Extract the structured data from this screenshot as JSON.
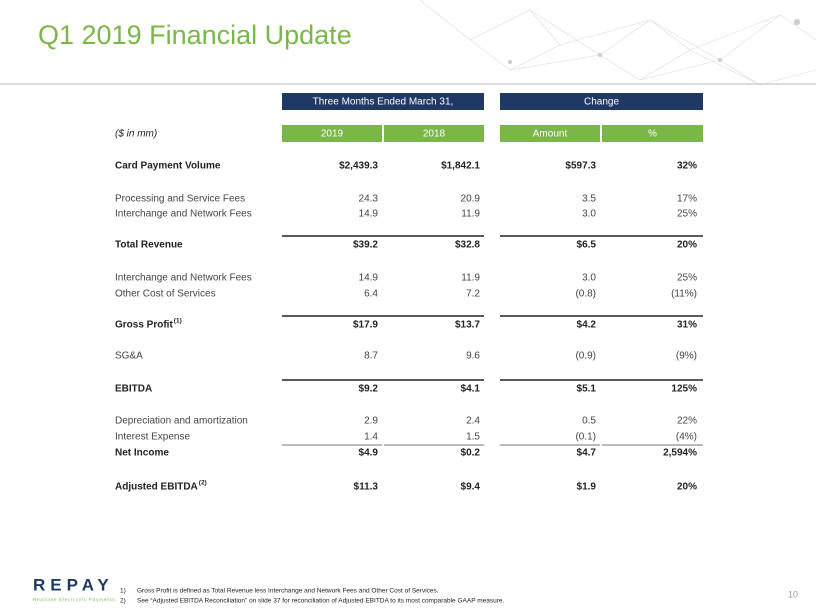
{
  "header": {
    "title": "Q1 2019 Financial Update"
  },
  "table": {
    "unit_note": "($ in mm)",
    "groups": [
      "Three Months Ended March 31,",
      "Change"
    ],
    "columns": [
      "2019",
      "2018",
      "Amount",
      "%"
    ],
    "rows": [
      {
        "label": "Card Payment Volume",
        "cells": [
          "$2,439.3",
          "$1,842.1",
          "$597.3",
          "32%"
        ],
        "bold": true
      },
      {
        "label": "Processing and Service Fees",
        "cells": [
          "24.3",
          "20.9",
          "3.5",
          "17%"
        ]
      },
      {
        "label": "Interchange and Network Fees",
        "cells": [
          "14.9",
          "11.9",
          "3.0",
          "25%"
        ]
      },
      {
        "label": "Total Revenue",
        "cells": [
          "$39.2",
          "$32.8",
          "$6.5",
          "20%"
        ],
        "bold": true,
        "rule_above": true
      },
      {
        "label": "Interchange and Network Fees",
        "cells": [
          "14.9",
          "11.9",
          "3.0",
          "25%"
        ]
      },
      {
        "label": "Other Cost of Services",
        "cells": [
          "6.4",
          "7.2",
          "(0.8)",
          "(11%)"
        ]
      },
      {
        "label": "Gross Profit",
        "note": "(1)",
        "cells": [
          "$17.9",
          "$13.7",
          "$4.2",
          "31%"
        ],
        "bold": true,
        "rule_above": true
      },
      {
        "label": "SG&A",
        "cells": [
          "8.7",
          "9.6",
          "(0.9)",
          "(9%)"
        ]
      },
      {
        "label": "EBITDA",
        "cells": [
          "$9.2",
          "$4.1",
          "$5.1",
          "125%"
        ],
        "bold": true,
        "rule_above": true
      },
      {
        "label": "Depreciation and amortization",
        "cells": [
          "2.9",
          "2.4",
          "0.5",
          "22%"
        ]
      },
      {
        "label": "Interest Expense",
        "cells": [
          "1.4",
          "1.5",
          "(0.1)",
          "(4%)"
        ],
        "underline": true
      },
      {
        "label": "Net Income",
        "cells": [
          "$4.9",
          "$0.2",
          "$4.7",
          "2,594%"
        ],
        "bold": true
      },
      {
        "label": "Adjusted EBITDA",
        "note": "(2)",
        "cells": [
          "$11.3",
          "$9.4",
          "$1.9",
          "20%"
        ],
        "bold": true
      }
    ]
  },
  "footnotes": [
    {
      "marker": "1)",
      "text": "Gross Profit is defined as Total Revenue less Interchange and Network Fees and Other Cost of Services."
    },
    {
      "marker": "2)",
      "text": "See “Adjusted EBITDA Reconciliation” on slide 37 for reconciliation of Adjusted EBITDA to its most comparable GAAP measure."
    }
  ],
  "logo": {
    "name": "REPAY",
    "tagline": "Realtime Electronic Payments"
  },
  "page_number": "10"
}
